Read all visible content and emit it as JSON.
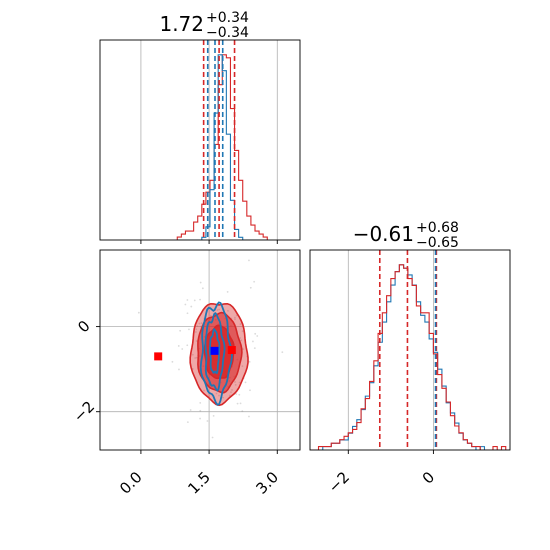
{
  "chart_data": {
    "type": "corner",
    "parameters": [
      {
        "title": {
          "median": "1.72",
          "plus": "+0.34",
          "minus": "−0.34"
        },
        "xlim": [
          -0.9,
          3.5
        ],
        "ticks": [
          0.0,
          1.5,
          3.0
        ],
        "tick_labels": [
          "0.0",
          "1.5",
          "3.0"
        ],
        "hist_bins": {
          "start": 0.8,
          "width": 0.09
        },
        "red_hist_counts": [
          1,
          2,
          3,
          3,
          6,
          8,
          12,
          16,
          20,
          32,
          52,
          62,
          61,
          44,
          30,
          20,
          13,
          8,
          5,
          3,
          2,
          1
        ],
        "blue_hist_counts": [
          0,
          0,
          0,
          0,
          0,
          0,
          2,
          10,
          38,
          96,
          140,
          128,
          80,
          30,
          8,
          2,
          0,
          0,
          0,
          0,
          0,
          0
        ],
        "red_quantiles": [
          1.38,
          1.72,
          2.06
        ],
        "blue_quantiles": [
          1.47,
          1.63,
          1.8
        ]
      },
      {
        "title": {
          "median": "−0.61",
          "plus": "+0.68",
          "minus": "−0.65"
        },
        "xlim": [
          -2.9,
          1.8
        ],
        "ticks": [
          -2,
          0
        ],
        "tick_labels": [
          "−2",
          "0"
        ],
        "hist_bins": {
          "start": -2.9,
          "width": 0.1
        },
        "red_hist_counts": [
          0,
          0,
          1,
          1,
          1,
          2,
          2,
          3,
          4,
          5,
          6,
          8,
          12,
          15,
          20,
          26,
          34,
          40,
          45,
          50,
          52,
          54,
          53,
          50,
          48,
          42,
          40,
          40,
          34,
          28,
          22,
          18,
          14,
          10,
          7,
          5,
          3,
          2,
          1,
          1,
          0,
          0,
          0,
          1,
          0,
          1,
          0
        ],
        "blue_hist_counts": [
          0,
          0,
          0,
          1,
          1,
          2,
          2,
          3,
          3,
          5,
          7,
          9,
          12,
          16,
          20,
          25,
          32,
          38,
          44,
          49,
          53,
          55,
          54,
          52,
          49,
          44,
          40,
          38,
          33,
          29,
          24,
          19,
          14,
          11,
          8,
          5,
          3,
          2,
          1,
          0,
          1,
          0,
          0,
          0,
          0,
          0,
          0
        ],
        "red_quantiles": [
          -1.26,
          -0.61,
          0.07
        ],
        "blue_quantiles": [
          0.05
        ]
      }
    ],
    "joint": {
      "xlim": [
        -0.9,
        3.5
      ],
      "ylim": [
        -2.9,
        1.8
      ],
      "red_contours": [
        {
          "center": [
            1.72,
            -0.61
          ],
          "radii": [
            0.62,
            1.18
          ]
        },
        {
          "center": [
            1.72,
            -0.61
          ],
          "radii": [
            0.48,
            0.92
          ]
        },
        {
          "center": [
            1.72,
            -0.61
          ],
          "radii": [
            0.32,
            0.62
          ]
        }
      ],
      "blue_contours": [
        {
          "center": [
            1.65,
            -0.6
          ],
          "radii": [
            0.32,
            1.12
          ]
        },
        {
          "center": [
            1.62,
            -0.6
          ],
          "radii": [
            0.2,
            0.85
          ]
        },
        {
          "center": [
            1.62,
            -0.6
          ],
          "radii": [
            0.1,
            0.5
          ]
        }
      ],
      "markers": [
        {
          "x": 0.38,
          "y": -0.7,
          "color": "#ff0000"
        },
        {
          "x": 2.0,
          "y": -0.55,
          "color": "#ff0000"
        },
        {
          "x": 1.62,
          "y": -0.57,
          "color": "#0000ff"
        }
      ]
    },
    "colors": {
      "red": "#d62728",
      "blue": "#1f77b4",
      "grid": "#b0b0b0"
    }
  }
}
